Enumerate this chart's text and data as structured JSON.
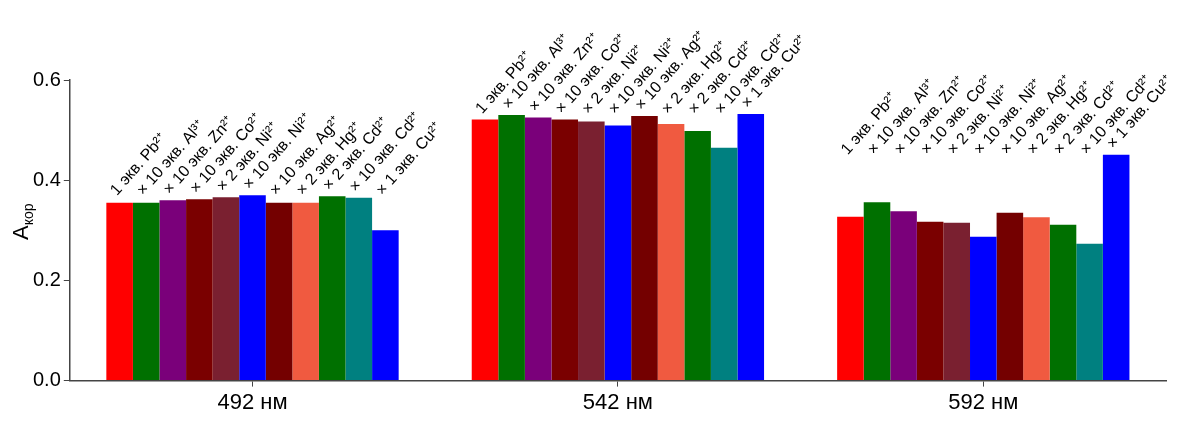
{
  "chart_data": {
    "type": "bar",
    "ylabel": "A$_{кор}$",
    "categories": [
      "492 нм",
      "542 нм",
      "592 нм"
    ],
    "ylim": [
      0,
      0.6
    ],
    "yticks": [
      {
        "value": 0,
        "label": "0.0"
      },
      0.2,
      0.4,
      0.6
    ],
    "series": [
      {
        "name": "1 экв. Pb²⁺",
        "color": "#ff0000",
        "values": [
          0.355,
          0.521,
          0.327
        ]
      },
      {
        "name": "× 10 экв. Al³⁺",
        "color": "#007000",
        "values": [
          0.355,
          0.53,
          0.356
        ]
      },
      {
        "name": "× 10 экв. Zn²⁺",
        "color": "#7a007a",
        "values": [
          0.36,
          0.525,
          0.338
        ]
      },
      {
        "name": "× 10 экв. Co²⁺",
        "color": "#7a0000",
        "values": [
          0.362,
          0.521,
          0.317
        ]
      },
      {
        "name": "× 2 экв. Ni²⁺",
        "color": "#7a2030",
        "values": [
          0.366,
          0.517,
          0.315
        ]
      },
      {
        "name": "× 10 экв. Ni²⁺",
        "color": "#0000ff",
        "values": [
          0.37,
          0.509,
          0.287
        ]
      },
      {
        "name": "× 10 экв. Ag²⁺",
        "color": "#740000",
        "values": [
          0.355,
          0.528,
          0.335
        ]
      },
      {
        "name": "× 2 экв. Hg²⁺",
        "color": "#f05a40",
        "values": [
          0.355,
          0.512,
          0.326
        ]
      },
      {
        "name": "× 2 экв. Cd²⁺",
        "color": "#007000",
        "values": [
          0.368,
          0.498,
          0.311
        ]
      },
      {
        "name": "× 10 экв. Cd²⁺",
        "color": "#008080",
        "values": [
          0.365,
          0.465,
          0.273
        ]
      },
      {
        "name": "× 1 экв. Cu²⁺",
        "color": "#0000ff",
        "values": [
          0.3,
          0.532,
          0.451
        ]
      }
    ]
  }
}
